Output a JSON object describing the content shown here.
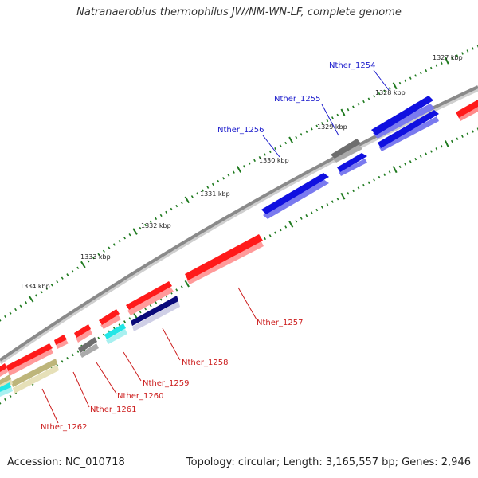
{
  "title": "Natranaerobius thermophilus JW/NM-WN-LF, complete genome",
  "footer": {
    "accession": "Accession: NC_010718",
    "summary": "Topology: circular; Length: 3,165,557 bp; Genes: 2,946"
  },
  "colors": {
    "backbone": "#8a8a8a",
    "tick": "#1f7a1f",
    "forward_label": "#1c1ccc",
    "reverse_label": "#cc1c1c",
    "red": "#ff1a1a",
    "blue": "#1010e0",
    "gray": "#6e6e6e",
    "cyan": "#22e6e6",
    "khaki": "#bdb57a",
    "navy": "#0a0a7a"
  },
  "tick_labels": [
    "1327 kbp",
    "1328 kbp",
    "1329 kbp",
    "1330 kbp",
    "1331 kbp",
    "1332 kbp",
    "1333 kbp",
    "1334 kbp"
  ],
  "gene_labels": {
    "n1254": "Nther_1254",
    "n1255": "Nther_1255",
    "n1256": "Nther_1256",
    "n1257": "Nther_1257",
    "n1258": "Nther_1258",
    "n1259": "Nther_1259",
    "n1260": "Nther_1260",
    "n1261": "Nther_1261",
    "n1262": "Nther_1262"
  }
}
